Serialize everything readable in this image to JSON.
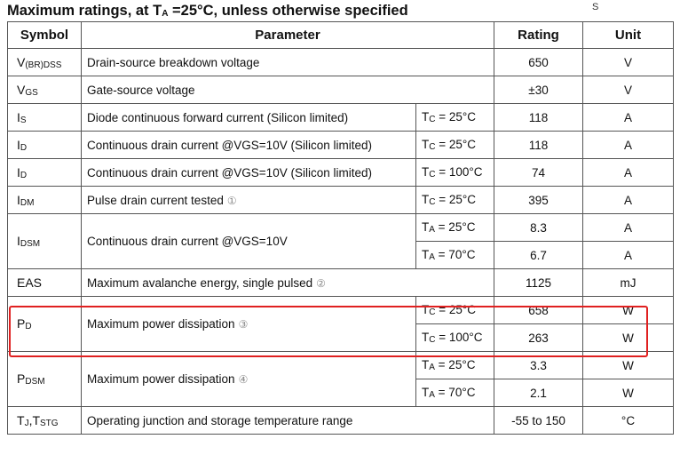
{
  "title": {
    "text_main": "Maximum ratings, at T",
    "text_sub": "A",
    "text_rest": " =25°C, unless otherwise specified"
  },
  "corner_mark": "S",
  "headers": {
    "symbol": "Symbol",
    "parameter": "Parameter",
    "rating": "Rating",
    "unit": "Unit"
  },
  "rows": {
    "vbrdss": {
      "sym_main": "V",
      "sym_sub": "(BR)DSS",
      "param": "Drain-source breakdown voltage",
      "rating": "650",
      "unit": "V"
    },
    "vgs": {
      "sym_main": "V",
      "sym_sub": "GS",
      "param": "Gate-source voltage",
      "rating": "±30",
      "unit": "V"
    },
    "is": {
      "sym_main": "I",
      "sym_sub": "S",
      "param": "Diode continuous forward current (Silicon limited)",
      "cond_main": "T",
      "cond_sub": "C",
      "cond_rest": " = 25°C",
      "rating": "118",
      "unit": "A"
    },
    "id1": {
      "sym_main": "I",
      "sym_sub": "D",
      "param": "Continuous drain current @VGS=10V (Silicon limited)",
      "cond_main": "T",
      "cond_sub": "C",
      "cond_rest": " = 25°C",
      "rating": "118",
      "unit": "A"
    },
    "id2": {
      "sym_main": "I",
      "sym_sub": "D",
      "param": "Continuous drain current @VGS=10V (Silicon limited)",
      "cond_main": "T",
      "cond_sub": "C",
      "cond_rest": " = 100°C",
      "rating": "74",
      "unit": "A"
    },
    "idm": {
      "sym_main": "I",
      "sym_sub": "DM",
      "param": "Pulse drain current tested",
      "note": "①",
      "cond_main": "T",
      "cond_sub": "C",
      "cond_rest": " = 25°C",
      "rating": "395",
      "unit": "A"
    },
    "idsm": {
      "sym_main": "I",
      "sym_sub": "DSM",
      "param": "Continuous drain current @VGS=10V",
      "cond1_main": "T",
      "cond1_sub": "A",
      "cond1_rest": " = 25°C",
      "rating1": "8.3",
      "unit1": "A",
      "cond2_main": "T",
      "cond2_sub": "A",
      "cond2_rest": " = 70°C",
      "rating2": "6.7",
      "unit2": "A"
    },
    "eas": {
      "sym": "EAS",
      "param": "Maximum avalanche energy, single pulsed",
      "note": "②",
      "rating": "1125",
      "unit": "mJ"
    },
    "pd": {
      "sym_main": "P",
      "sym_sub": "D",
      "param": "Maximum power dissipation",
      "note": "③",
      "cond1_main": "T",
      "cond1_sub": "C",
      "cond1_rest": " = 25°C",
      "rating1": "658",
      "unit1": "W",
      "cond2_main": "T",
      "cond2_sub": "C",
      "cond2_rest": " = 100°C",
      "rating2": "263",
      "unit2": "W"
    },
    "pdsm": {
      "sym_main": "P",
      "sym_sub": "DSM",
      "param": "Maximum power dissipation",
      "note": "④",
      "cond1_main": "T",
      "cond1_sub": "A",
      "cond1_rest": " = 25°C",
      "rating1": "3.3",
      "unit1": "W",
      "cond2_main": "T",
      "cond2_sub": "A",
      "cond2_rest": " = 70°C",
      "rating2": "2.1",
      "unit2": "W"
    },
    "tj": {
      "sym_main": "T",
      "sym_sub": "J",
      "sym_mid": ",T",
      "sym_sub2": "STG",
      "param": "Operating junction and storage temperature range",
      "rating": "-55 to 150",
      "unit": "°C"
    }
  },
  "highlight_color": "#e02020"
}
